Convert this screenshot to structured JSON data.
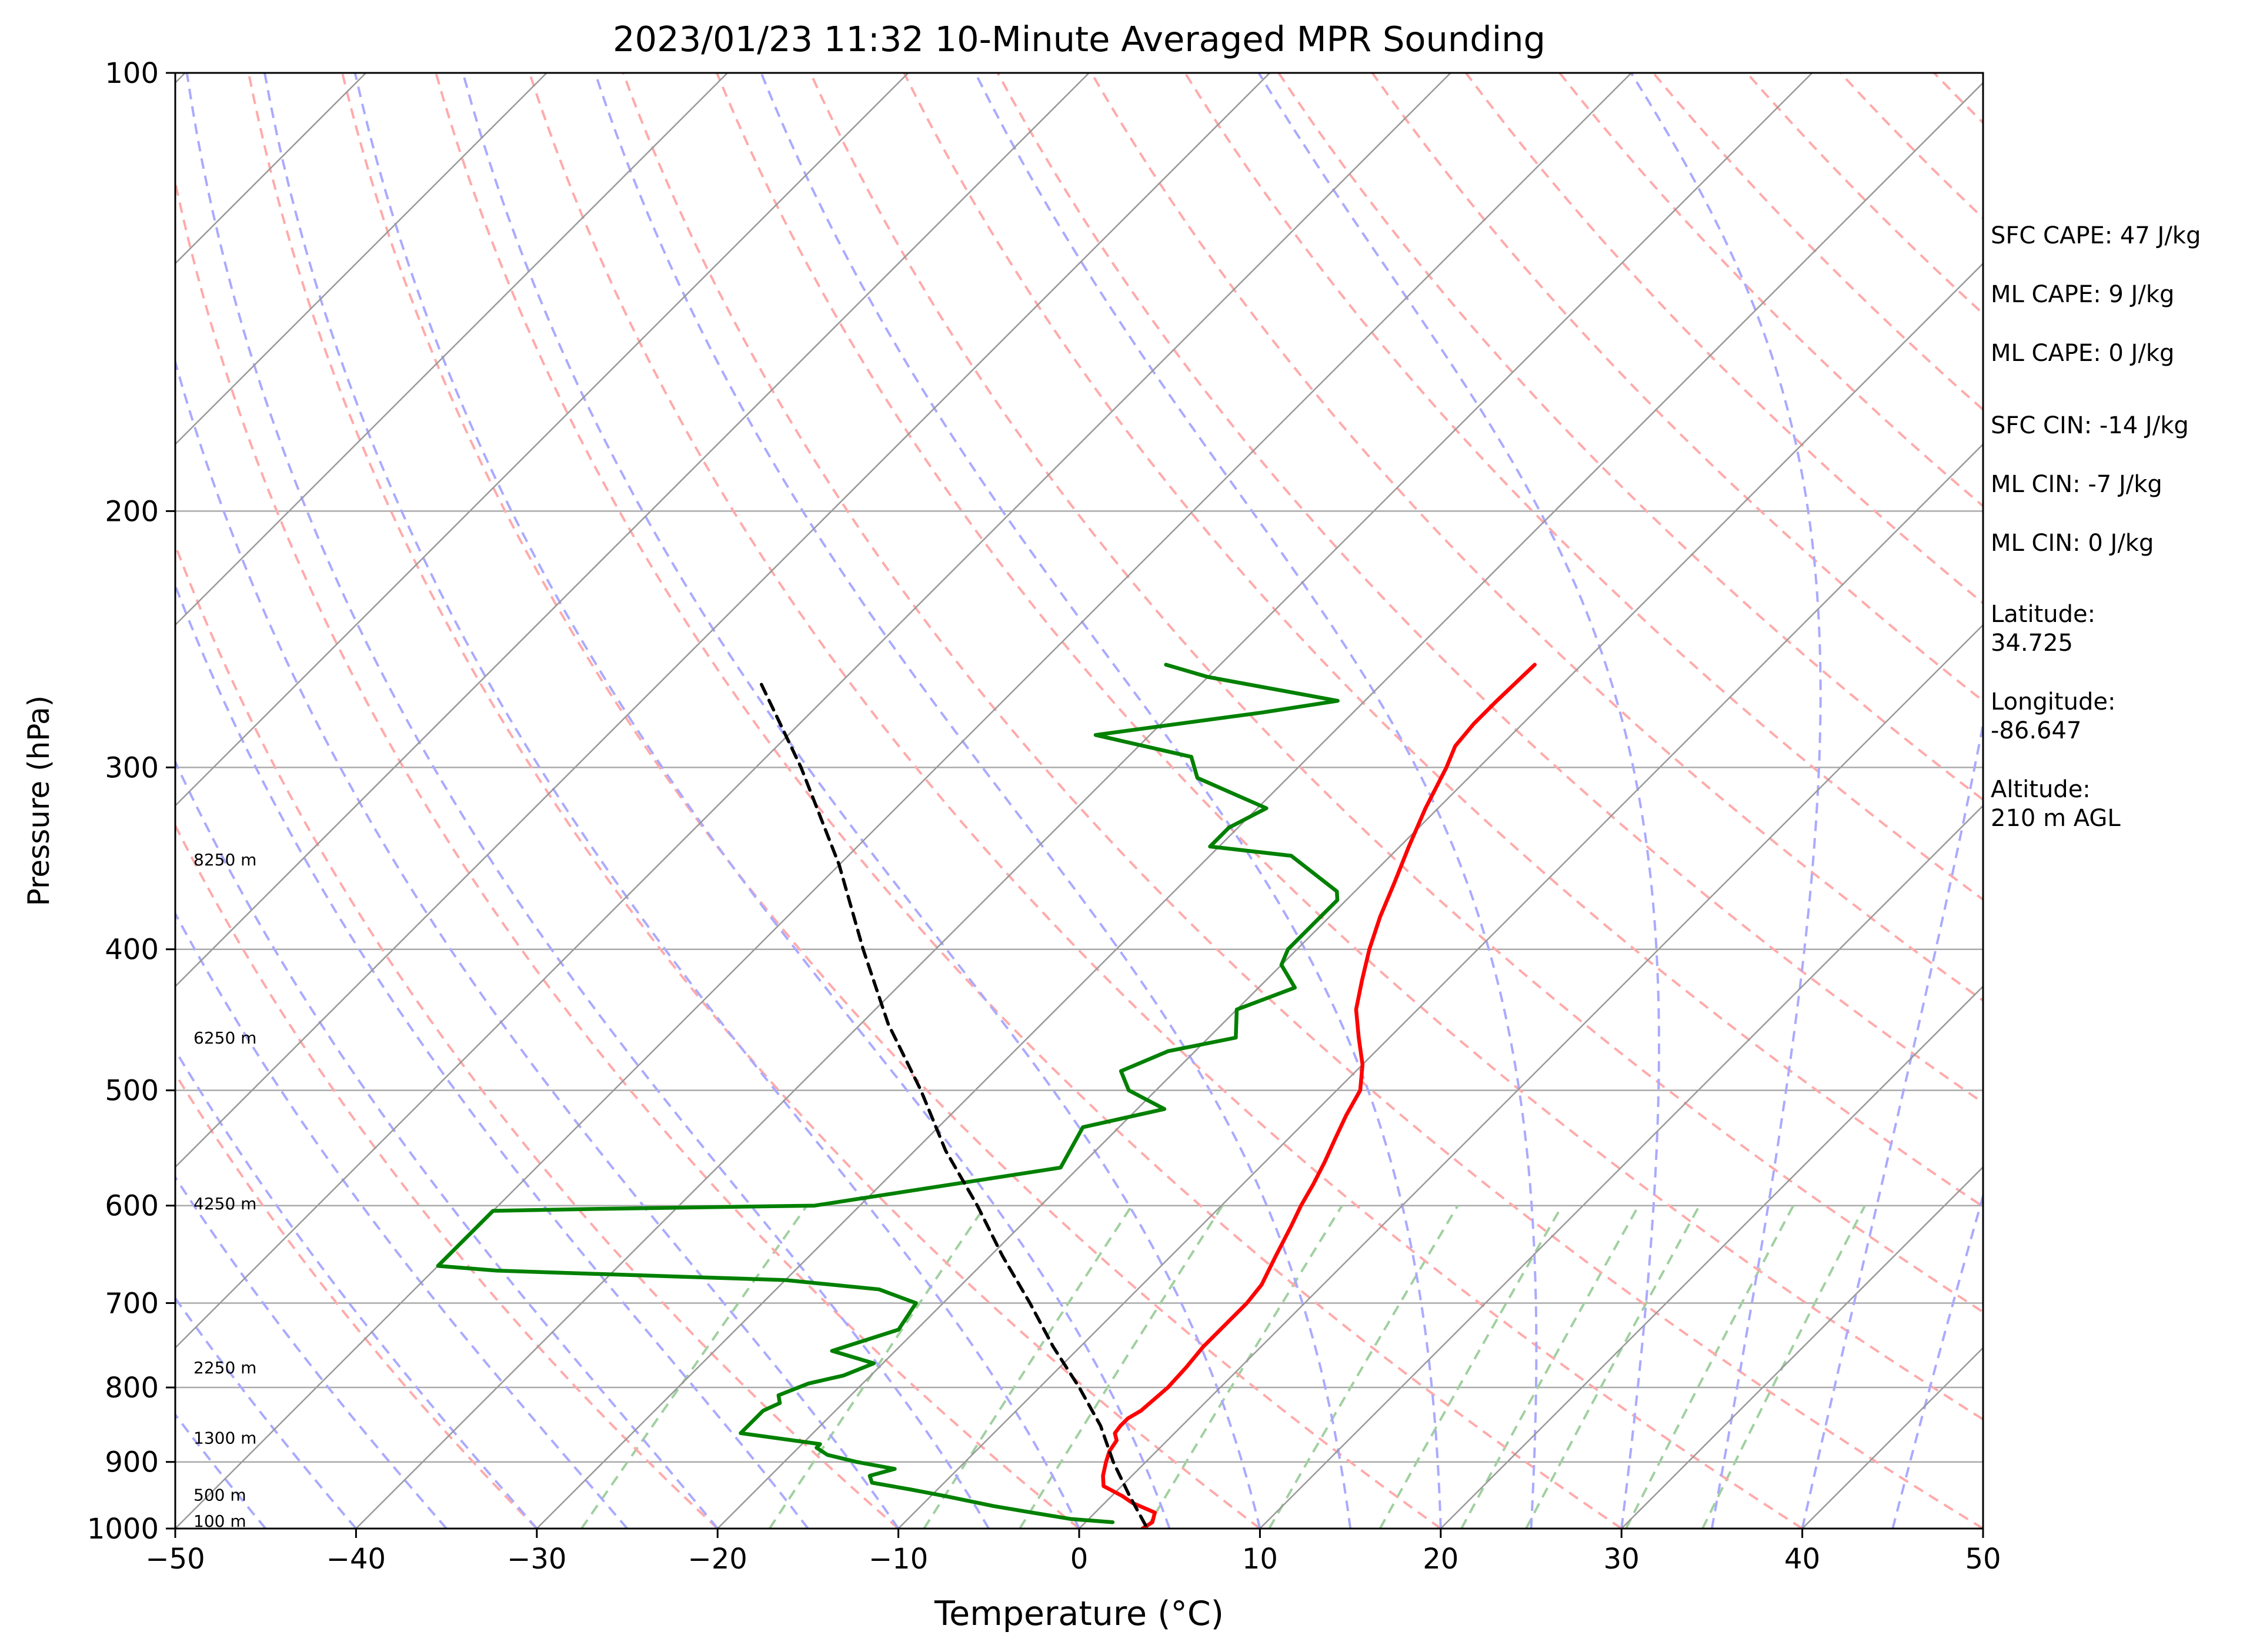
{
  "title": "2023/01/23 11:32 10-Minute Averaged MPR Sounding",
  "colors": {
    "temperature": "#ff0000",
    "dewpoint": "#008000",
    "parcel": "#000000",
    "isotherm": "#999999",
    "isobar": "#aaaaaa",
    "dry_adiabat": "#ffaaaa",
    "moist_adiabat": "#aaaaff",
    "mixing_ratio": "#a0d0a0"
  },
  "stats": [
    {
      "name": "sfc-cape",
      "text": "SFC CAPE: 47 J/kg"
    },
    {
      "name": "ml-cape-1",
      "text": "ML CAPE: 9 J/kg"
    },
    {
      "name": "ml-cape-2",
      "text": "ML CAPE: 0 J/kg"
    },
    {
      "name": "sfc-cin",
      "text": "SFC CIN: -14 J/kg"
    },
    {
      "name": "ml-cin-1",
      "text": "ML CIN: -7 J/kg"
    },
    {
      "name": "ml-cin-2",
      "text": "ML CIN: 0 J/kg"
    }
  ],
  "location": {
    "latitude_label": "Latitude:",
    "latitude_value": "34.725",
    "longitude_label": "Longitude:",
    "longitude_value": "-86.647",
    "altitude_label": "Altitude:",
    "altitude_value": "210 m AGL"
  },
  "chart_data": {
    "type": "line",
    "subtype": "skew-t log-p",
    "title": "2023/01/23 11:32 10-Minute Averaged MPR Sounding",
    "xlabel": "Temperature (°C)",
    "ylabel": "Pressure (hPa)",
    "xlim": [
      -50,
      50
    ],
    "ylim": [
      1000,
      100
    ],
    "y_scale": "log",
    "x_ticks": [
      -50,
      -40,
      -30,
      -20,
      -10,
      0,
      10,
      20,
      30,
      40,
      50
    ],
    "x_tick_labels": [
      "−50",
      "−40",
      "−30",
      "−20",
      "−10",
      "0",
      "10",
      "20",
      "30",
      "40",
      "50"
    ],
    "y_ticks": [
      1000,
      900,
      800,
      700,
      600,
      500,
      400,
      300,
      200,
      100
    ],
    "y_tick_labels": [
      "1000",
      "900",
      "800",
      "700",
      "600",
      "500",
      "400",
      "300",
      "200",
      "100"
    ],
    "grid": true,
    "height_labels": [
      {
        "text": "100 m",
        "p": 988
      },
      {
        "text": "500 m",
        "p": 948
      },
      {
        "text": "1300 m",
        "p": 866
      },
      {
        "text": "2250 m",
        "p": 775
      },
      {
        "text": "4250 m",
        "p": 598
      },
      {
        "text": "6250 m",
        "p": 460
      },
      {
        "text": "8250 m",
        "p": 347
      }
    ],
    "series": [
      {
        "key": "temperature",
        "p": [
          1000,
          990,
          975,
          960,
          950,
          935,
          920,
          900,
          885,
          870,
          860,
          850,
          840,
          830,
          800,
          775,
          750,
          700,
          680,
          650,
          620,
          600,
          580,
          560,
          540,
          520,
          500,
          480,
          460,
          440,
          420,
          400,
          380,
          360,
          340,
          320,
          300,
          290,
          280,
          270,
          255
        ],
        "t": [
          3.5,
          3.7,
          3.3,
          1.5,
          0.6,
          -1.0,
          -1.6,
          -2.2,
          -2.6,
          -2.8,
          -3.3,
          -3.4,
          -3.4,
          -3.1,
          -2.9,
          -3.0,
          -3.2,
          -3.2,
          -3.4,
          -4.2,
          -5.0,
          -5.6,
          -6.1,
          -6.7,
          -7.4,
          -8.1,
          -8.7,
          -10.0,
          -11.7,
          -13.4,
          -14.7,
          -16.0,
          -17.2,
          -18.3,
          -19.5,
          -20.7,
          -21.8,
          -22.5,
          -22.7,
          -22.7,
          -22.6
        ]
      },
      {
        "key": "dewpoint",
        "p": [
          990,
          985,
          975,
          965,
          950,
          940,
          930,
          920,
          910,
          900,
          890,
          880,
          875,
          860,
          850,
          830,
          820,
          810,
          795,
          785,
          770,
          755,
          730,
          700,
          685,
          675,
          665,
          660,
          605,
          603,
          600,
          580,
          565,
          530,
          515,
          500,
          485,
          470,
          460,
          440,
          425,
          410,
          400,
          385,
          370,
          365,
          345,
          340,
          330,
          320,
          305,
          295,
          285,
          275,
          270,
          260,
          255
        ],
        "t": [
          1.5,
          -1.0,
          -3.5,
          -6.0,
          -9.2,
          -11.5,
          -14.0,
          -14.5,
          -13.5,
          -16.0,
          -18.0,
          -19.0,
          -19.0,
          -24.0,
          -24.0,
          -24.0,
          -23.5,
          -24.0,
          -23.0,
          -21.5,
          -20.5,
          -23.5,
          -21.0,
          -21.5,
          -24.3,
          -30.0,
          -46.5,
          -50.0,
          -50.0,
          -44.0,
          -32.5,
          -26.0,
          -21.0,
          -22.0,
          -18.5,
          -21.5,
          -23.0,
          -21.5,
          -18.5,
          -20.0,
          -18.0,
          -20.0,
          -20.5,
          -20.5,
          -20.5,
          -21.0,
          -25.5,
          -30.5,
          -30.5,
          -29.5,
          -35.0,
          -36.5,
          -43.0,
          -35.0,
          -31.5,
          -40.0,
          -43.0
        ]
      },
      {
        "key": "parcel",
        "p": [
          995,
          950,
          900,
          850,
          800,
          750,
          700,
          650,
          600,
          550,
          500,
          450,
          400,
          350,
          300,
          262
        ],
        "t": [
          3.5,
          1.0,
          -1.8,
          -4.5,
          -7.8,
          -11.5,
          -15.2,
          -19.3,
          -23.5,
          -28.3,
          -33.0,
          -38.5,
          -44.0,
          -50.0,
          -57.5,
          -64.5
        ]
      }
    ]
  }
}
